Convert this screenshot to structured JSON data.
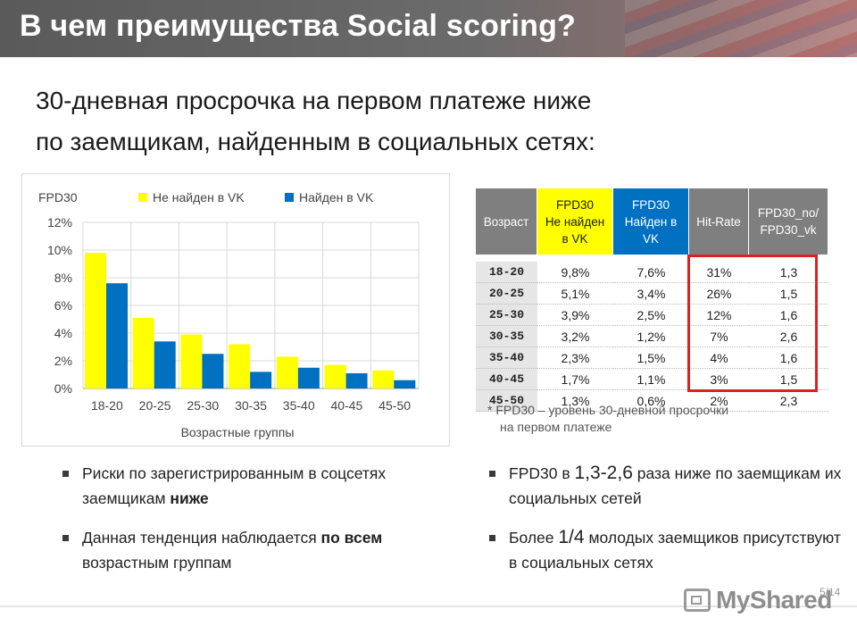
{
  "header": {
    "title": "В чем преимущества Social scoring?"
  },
  "subtitle": {
    "line1": "30-дневная просрочка на первом платеже ниже",
    "line2": "по заемщикам, найденным в социальных сетях:"
  },
  "chart_data": {
    "type": "bar",
    "title": "FPD30",
    "xlabel": "Возрастные группы",
    "ylabel": "",
    "categories": [
      "18-20",
      "20-25",
      "25-30",
      "30-35",
      "35-40",
      "40-45",
      "45-50"
    ],
    "series": [
      {
        "name": "Не найден в VK",
        "color": "#ffff00",
        "values": [
          9.8,
          5.1,
          3.9,
          3.2,
          2.3,
          1.7,
          1.3
        ]
      },
      {
        "name": "Найден в VK",
        "color": "#0070c0",
        "values": [
          7.6,
          3.4,
          2.5,
          1.2,
          1.5,
          1.1,
          0.6
        ]
      }
    ],
    "ylim": [
      0,
      12
    ],
    "yticks": [
      "0%",
      "2%",
      "4%",
      "6%",
      "8%",
      "10%",
      "12%"
    ],
    "ytick_values": [
      0,
      2,
      4,
      6,
      8,
      10,
      12
    ],
    "grid": true,
    "legend": "top"
  },
  "table": {
    "headers": {
      "age": "Возраст",
      "not_found": [
        "FPD30",
        "Не найден",
        "в VK"
      ],
      "found": [
        "FPD30",
        "Найден в",
        "VK"
      ],
      "hit_rate": "Hit-Rate",
      "ratio": [
        "FPD30_no/",
        "FPD30_vk"
      ]
    },
    "rows": [
      {
        "age": "18-20",
        "not_found": "9,8%",
        "found": "7,6%",
        "hit_rate": "31%",
        "ratio": "1,3"
      },
      {
        "age": "20-25",
        "not_found": "5,1%",
        "found": "3,4%",
        "hit_rate": "26%",
        "ratio": "1,5"
      },
      {
        "age": "25-30",
        "not_found": "3,9%",
        "found": "2,5%",
        "hit_rate": "12%",
        "ratio": "1,6"
      },
      {
        "age": "30-35",
        "not_found": "3,2%",
        "found": "1,2%",
        "hit_rate": "7%",
        "ratio": "2,6"
      },
      {
        "age": "35-40",
        "not_found": "2,3%",
        "found": "1,5%",
        "hit_rate": "4%",
        "ratio": "1,6"
      },
      {
        "age": "40-45",
        "not_found": "1,7%",
        "found": "1,1%",
        "hit_rate": "3%",
        "ratio": "1,5"
      },
      {
        "age": "45-50",
        "not_found": "1,3%",
        "found": "0,6%",
        "hit_rate": "2%",
        "ratio": "2,3"
      }
    ]
  },
  "footnote": {
    "line1": "* FPD30 – уровень 30-дневной просрочки",
    "line2": "на первом платеже"
  },
  "bullets_left": [
    {
      "pre": "Риски по зарегистрированным в соцсетях заемщикам ",
      "bold": "ниже",
      "post": ""
    },
    {
      "pre": "Данная тенденция наблюдается ",
      "bold": "по всем",
      "post": " возрастным группам"
    }
  ],
  "bullets_right": [
    {
      "pre": "FPD30 в ",
      "big": "1,3-2,6",
      "post": " раза ниже по заемщикам их социальных сетей"
    },
    {
      "pre": "Более ",
      "big": "1/4",
      "post": " молодых заемщиков присутствуют в социальных сетях"
    }
  ],
  "footer": {
    "page": "5/14",
    "logo_text": "MyShared"
  },
  "colors": {
    "accent_red": "#e02020",
    "header_bg": "#5a5a5a",
    "yellow": "#ffff00",
    "blue": "#0070c0"
  }
}
